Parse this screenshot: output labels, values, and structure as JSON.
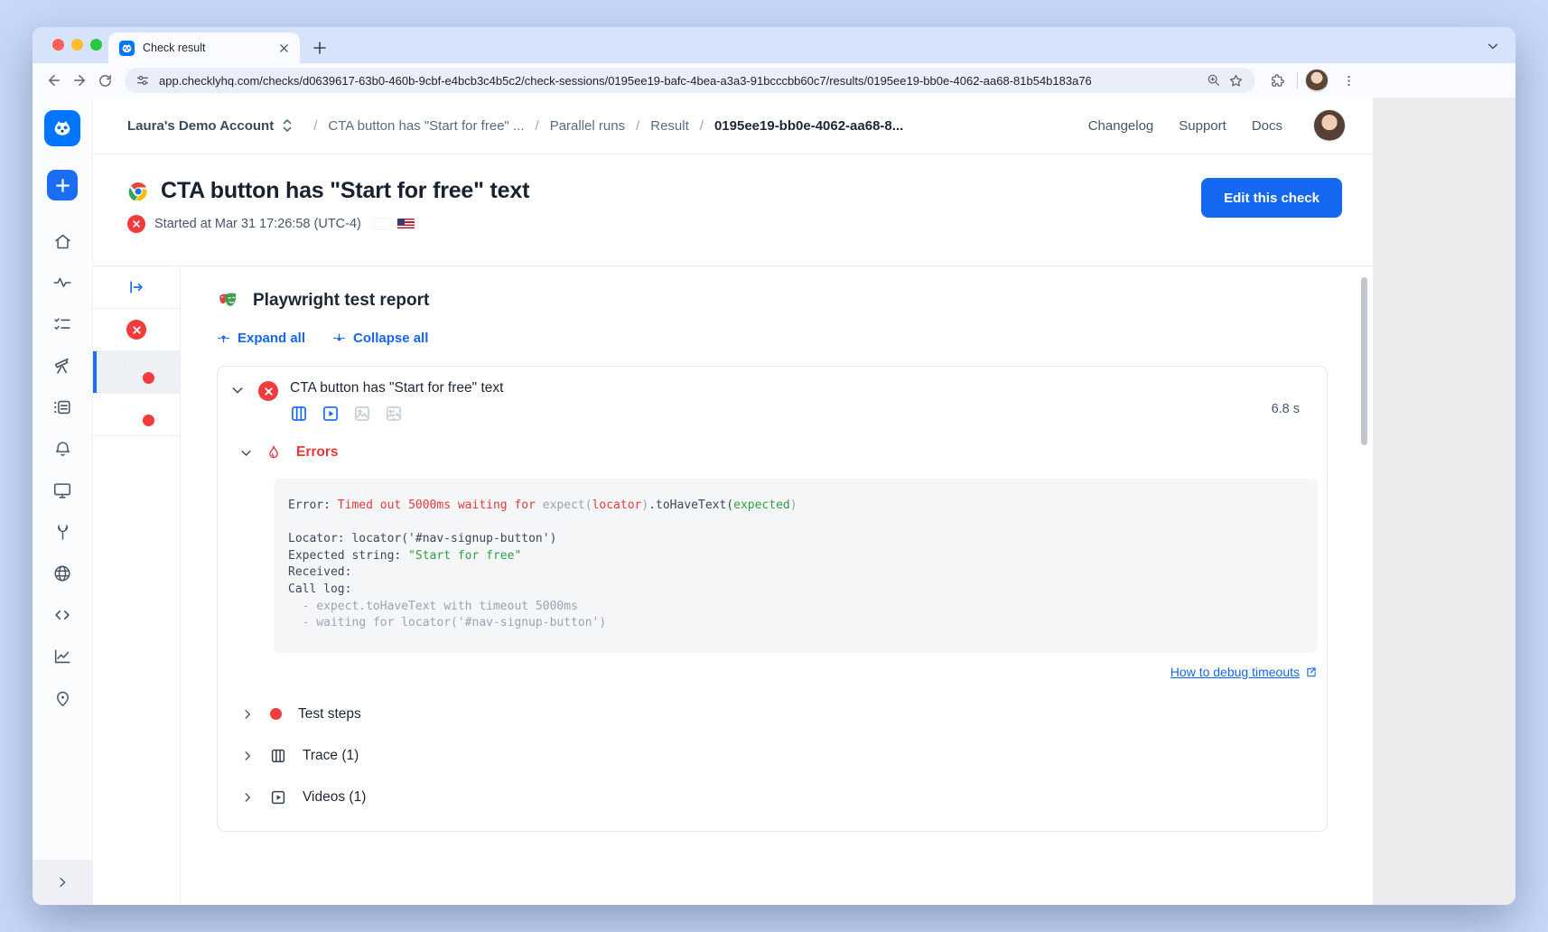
{
  "browser": {
    "tab_title": "Check result",
    "new_tab": "+",
    "url": "app.checklyhq.com/checks/d0639617-63b0-460b-9cbf-e4bcb3c4b5c2/check-sessions/0195ee19-bafc-4bea-a3a3-91bcccbb60c7/results/0195ee19-bb0e-4062-aa68-81b54b183a76"
  },
  "topnav": {
    "account": "Laura's Demo Account",
    "breadcrumbs": [
      "CTA button has \"Start for free\" ...",
      "Parallel runs",
      "Result",
      "0195ee19-bb0e-4062-aa68-8..."
    ],
    "links": [
      "Changelog",
      "Support",
      "Docs"
    ]
  },
  "page": {
    "title": "CTA button has \"Start for free\" text",
    "started": "Started at Mar 31 17:26:58 (UTC-4)",
    "edit_button": "Edit this check"
  },
  "report": {
    "title": "Playwright test report",
    "expand_all": "Expand all",
    "collapse_all": "Collapse all",
    "test_title": "CTA button has \"Start for free\" text",
    "duration": "6.8 s",
    "errors_label": "Errors",
    "debug_link": "How to debug timeouts",
    "sections": [
      {
        "label": "Test steps"
      },
      {
        "label": "Trace (1)"
      },
      {
        "label": "Videos (1)"
      }
    ],
    "error_lines": [
      [
        {
          "t": "Error: ",
          "c": "d"
        },
        {
          "t": "Timed out 5000ms waiting for ",
          "c": "r"
        },
        {
          "t": "expect(",
          "c": "g"
        },
        {
          "t": "locator",
          "c": "r"
        },
        {
          "t": ")",
          "c": "g"
        },
        {
          "t": ".toHaveText(",
          "c": "d"
        },
        {
          "t": "expected",
          "c": "gr"
        },
        {
          "t": ")",
          "c": "g"
        }
      ],
      [
        {
          "t": " ",
          "c": "d"
        }
      ],
      [
        {
          "t": "Locator: locator('#nav-signup-button')",
          "c": "d"
        }
      ],
      [
        {
          "t": "Expected string: ",
          "c": "d"
        },
        {
          "t": "\"Start for free\"",
          "c": "gr"
        }
      ],
      [
        {
          "t": "Received: ",
          "c": "d"
        }
      ],
      [
        {
          "t": "Call log:",
          "c": "d"
        }
      ],
      [
        {
          "t": "  - expect.toHaveText with timeout 5000ms",
          "c": "g"
        }
      ],
      [
        {
          "t": "  - waiting for locator('#nav-signup-button')",
          "c": "g"
        }
      ]
    ]
  },
  "icons": {
    "rail": [
      "checkly-logo",
      "plus",
      "home",
      "activity",
      "checklist",
      "telescope",
      "status-card",
      "bell",
      "monitor",
      "wrench",
      "globe",
      "code",
      "chart",
      "map-pin",
      "collapse-chevron"
    ],
    "runs_rail": [
      "panel-expand",
      "failed-status",
      "flag-germany",
      "flag-usa"
    ],
    "case_icons": [
      "trace-columns",
      "video",
      "screenshot",
      "screenshot-diff"
    ],
    "colors": {
      "accent_blue": "#1568f0",
      "checkly_blue": "#0075ff",
      "error_red": "#e5393c",
      "success_green": "#2f9e44",
      "muted_gray": "#9aa3b2"
    }
  }
}
